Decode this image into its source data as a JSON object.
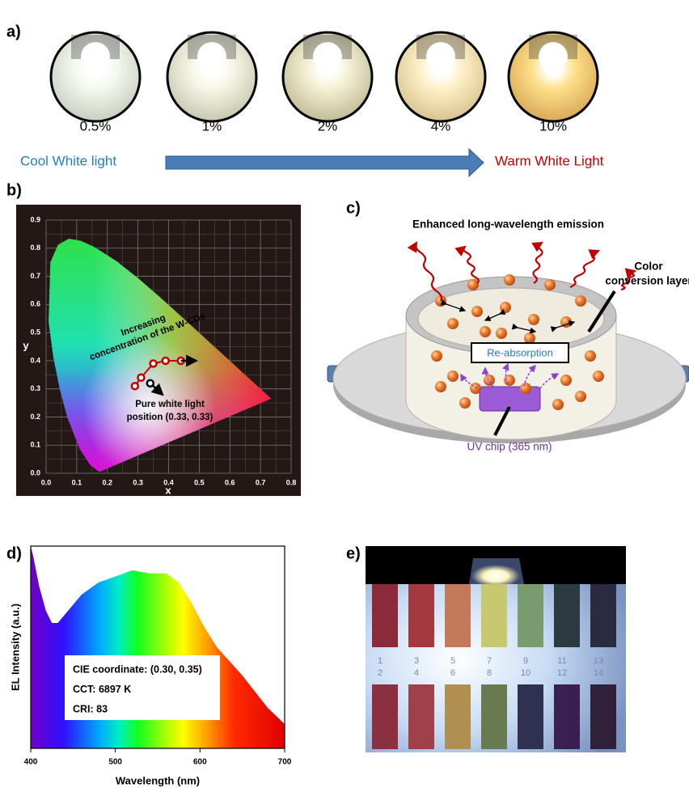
{
  "panel_a": {
    "label": "a)",
    "samples": [
      "0.5%",
      "1%",
      "2%",
      "4%",
      "10%"
    ],
    "left_text": "Cool White light",
    "right_text": "Warm White Light"
  },
  "panel_b": {
    "label": "b)",
    "x_label": "x",
    "y_label": "y",
    "xticks": [
      "0.0",
      "0.1",
      "0.2",
      "0.3",
      "0.4",
      "0.5",
      "0.6",
      "0.7",
      "0.8"
    ],
    "yticks": [
      "0.0",
      "0.1",
      "0.2",
      "0.3",
      "0.4",
      "0.5",
      "0.6",
      "0.7",
      "0.8",
      "0.9"
    ],
    "trend_label": [
      "Increasing",
      "concentration of the W-CDs"
    ],
    "white_label": [
      "Pure white light",
      "position (0.33, 0.33)"
    ]
  },
  "panel_c": {
    "label": "c)",
    "emission": "Enhanced long-wavelength emission",
    "layer": [
      "Color",
      "conversion layer"
    ],
    "reabsorption": "Re-absorption",
    "chip": "UV chip (365 nm)"
  },
  "panel_d": {
    "label": "d)",
    "y_label": "EL Intensity (a.u.)",
    "x_label": "Wavelength (nm)",
    "xticks": [
      "400",
      "500",
      "600",
      "700"
    ],
    "info": [
      "CIE coordinate: (0.30, 0.35)",
      "CCT: 6897 K",
      "CRI: 83"
    ]
  },
  "panel_e": {
    "label": "e)",
    "top_numbers": [
      "1",
      "3",
      "5",
      "7",
      "9",
      "11",
      "13"
    ],
    "bottom_numbers": [
      "2",
      "4",
      "6",
      "8",
      "10",
      "12",
      "14"
    ]
  }
}
